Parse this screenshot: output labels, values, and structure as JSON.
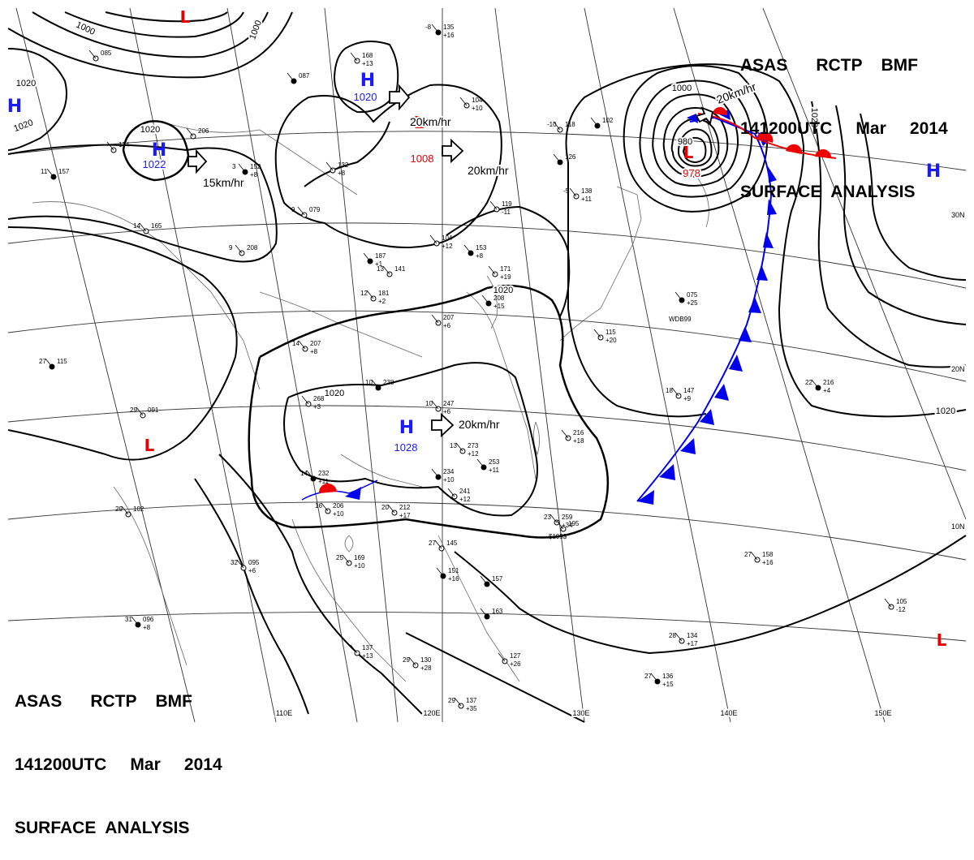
{
  "header": {
    "line1": "ASAS      RCTP    BMF",
    "line2": "141200UTC     Mar     2014",
    "line3": "SURFACE  ANALYSIS"
  },
  "colors": {
    "high": "#1a1aff",
    "low": "#e60000",
    "isobar": "#000000",
    "grid": "#333333",
    "coast": "#555555",
    "cold_front": "#0000ee",
    "warm_front": "#ee0000"
  },
  "grid_labels": {
    "lon": [
      "110E",
      "120E",
      "130E",
      "140E",
      "150E"
    ],
    "lat": [
      "30N",
      "20N",
      "10N"
    ]
  },
  "pressure_centers": [
    {
      "type": "H",
      "value": "1020",
      "color": "blue"
    },
    {
      "type": "H",
      "value": "1022",
      "color": "blue"
    },
    {
      "type": "H",
      "value": "1028",
      "color": "blue"
    },
    {
      "type": "H",
      "value": "",
      "color": "blue"
    },
    {
      "type": "H",
      "value": "",
      "color": "blue"
    },
    {
      "type": "L",
      "value": "1008",
      "color": "red"
    },
    {
      "type": "L",
      "value": "978",
      "color": "red"
    },
    {
      "type": "L",
      "value": "",
      "color": "red"
    },
    {
      "type": "L",
      "value": "",
      "color": "red"
    },
    {
      "type": "L",
      "value": "",
      "color": "red"
    }
  ],
  "movements": [
    "20km/hr",
    "20km/hr",
    "15km/hr",
    "20km/hr",
    "20km/hr",
    "20km/hr"
  ],
  "isobar_labels": [
    "1000",
    "1000",
    "1020",
    "1020",
    "1020",
    "1020",
    "1020",
    "1020",
    "1020",
    "1000",
    "980"
  ],
  "stations": [
    {
      "p": "135",
      "t": "-8",
      "d": "+16"
    },
    {
      "p": "168",
      "t": "",
      "d": "+13"
    },
    {
      "p": "085",
      "t": "",
      "d": ""
    },
    {
      "p": "087",
      "t": "",
      "d": ""
    },
    {
      "p": "104",
      "t": "",
      "d": "+10"
    },
    {
      "p": "118",
      "t": "-10",
      "d": ""
    },
    {
      "p": "102",
      "t": "",
      "d": ""
    },
    {
      "p": "174",
      "t": "",
      "d": ""
    },
    {
      "p": "206",
      "t": "",
      "d": ""
    },
    {
      "p": "152",
      "t": "3",
      "d": "+8"
    },
    {
      "p": "132",
      "t": "",
      "d": "+8"
    },
    {
      "p": "079",
      "t": "9",
      "d": ""
    },
    {
      "p": "157",
      "t": "11",
      "d": ""
    },
    {
      "p": "165",
      "t": "14",
      "d": ""
    },
    {
      "p": "208",
      "t": "9",
      "d": ""
    },
    {
      "p": "187",
      "t": "",
      "d": "+1"
    },
    {
      "p": "141",
      "t": "13",
      "d": ""
    },
    {
      "p": "104",
      "t": "",
      "d": "+12"
    },
    {
      "p": "153",
      "t": "",
      "d": "+8"
    },
    {
      "p": "119",
      "t": "",
      "d": "-11"
    },
    {
      "p": "138",
      "t": "-5",
      "d": "+11"
    },
    {
      "p": "126",
      "t": "",
      "d": ""
    },
    {
      "p": "181",
      "t": "12",
      "d": "+2"
    },
    {
      "p": "171",
      "t": "",
      "d": "+19"
    },
    {
      "p": "208",
      "t": "",
      "d": "+15"
    },
    {
      "p": "207",
      "t": "",
      "d": "+6"
    },
    {
      "p": "207",
      "t": "14",
      "d": "+8"
    },
    {
      "p": "238",
      "t": "10",
      "d": ""
    },
    {
      "p": "247",
      "t": "10",
      "d": "+6"
    },
    {
      "p": "268",
      "t": "",
      "d": "+3"
    },
    {
      "p": "232",
      "t": "14",
      "d": "+11"
    },
    {
      "p": "206",
      "t": "16",
      "d": "+10"
    },
    {
      "p": "212",
      "t": "20",
      "d": "+17"
    },
    {
      "p": "234",
      "t": "",
      "d": "+10"
    },
    {
      "p": "241",
      "t": "",
      "d": "+12"
    },
    {
      "p": "273",
      "t": "13",
      "d": "+12"
    },
    {
      "p": "253",
      "t": "",
      "d": "+11"
    },
    {
      "p": "216",
      "t": "",
      "d": "+18"
    },
    {
      "p": "259",
      "t": "23",
      "d": "+34"
    },
    {
      "p": "075",
      "t": "",
      "d": "+25"
    },
    {
      "p": "115",
      "t": "",
      "d": "+20"
    },
    {
      "p": "147",
      "t": "18",
      "d": "+9"
    },
    {
      "p": "216",
      "t": "22",
      "d": "+4"
    },
    {
      "p": "158",
      "t": "27",
      "d": "+16"
    },
    {
      "p": "145",
      "t": "27",
      "d": ""
    },
    {
      "p": "151",
      "t": "",
      "d": "+16"
    },
    {
      "p": "169",
      "t": "25",
      "d": "+10"
    },
    {
      "p": "095",
      "t": "32",
      "d": "+6"
    },
    {
      "p": "115",
      "t": "27",
      "d": ""
    },
    {
      "p": "091",
      "t": "29",
      "d": ""
    },
    {
      "p": "102",
      "t": "29",
      "d": ""
    },
    {
      "p": "096",
      "t": "31",
      "d": "+8"
    },
    {
      "p": "137",
      "t": "",
      "d": "+13"
    },
    {
      "p": "130",
      "t": "29",
      "d": "+28"
    },
    {
      "p": "163",
      "t": "",
      "d": ""
    },
    {
      "p": "127",
      "t": "",
      "d": "+26"
    },
    {
      "p": "137",
      "t": "29",
      "d": "+35"
    },
    {
      "p": "136",
      "t": "27",
      "d": "+15"
    },
    {
      "p": "134",
      "t": "28",
      "d": "+17"
    },
    {
      "p": "105",
      "t": "",
      "d": "-12"
    },
    {
      "p": "157",
      "t": "",
      "d": ""
    },
    {
      "p": "195",
      "t": "",
      "d": ""
    }
  ],
  "other_text": [
    "WDB99",
    "$195$"
  ]
}
